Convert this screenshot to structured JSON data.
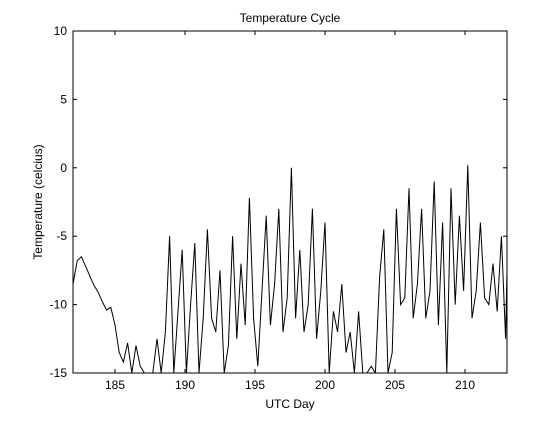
{
  "chart_data": {
    "type": "line",
    "title": "Temperature Cycle",
    "xlabel": "UTC Day",
    "ylabel": "Temperature (celcius)",
    "xlim": [
      182,
      213
    ],
    "ylim": [
      -15,
      10
    ],
    "xticks": [
      185,
      190,
      195,
      200,
      205,
      210
    ],
    "yticks": [
      -15,
      -10,
      -5,
      0,
      5,
      10
    ],
    "xtick_labels": [
      "185",
      "190",
      "195",
      "200",
      "205",
      "210"
    ],
    "ytick_labels": [
      "-15",
      "-10",
      "-5",
      "0",
      "5",
      "10"
    ],
    "grid": false,
    "line_color": "#000000",
    "series": [
      {
        "x": [
          182.0,
          182.3,
          182.6,
          182.9,
          183.2,
          183.5,
          183.8,
          184.1,
          184.4,
          184.7,
          185.0,
          185.3,
          185.6,
          185.9,
          186.2,
          186.5,
          186.8,
          187.1,
          187.4,
          187.7,
          188.0,
          188.3,
          188.6,
          188.9,
          189.2,
          189.5,
          189.8,
          190.1,
          190.4,
          190.7,
          191.0,
          191.3,
          191.6,
          191.9,
          192.2,
          192.5,
          192.8,
          193.1,
          193.4,
          193.7,
          194.0,
          194.3,
          194.6,
          194.9,
          195.2,
          195.5,
          195.8,
          196.1,
          196.4,
          196.7,
          197.0,
          197.3,
          197.6,
          197.9,
          198.2,
          198.5,
          198.8,
          199.1,
          199.4,
          199.7,
          200.0,
          200.3,
          200.6,
          200.9,
          201.2,
          201.5,
          201.8,
          202.1,
          202.4,
          202.7,
          203.0,
          203.3,
          203.6,
          203.9,
          204.2,
          204.5,
          204.8,
          205.1,
          205.4,
          205.7,
          206.0,
          206.3,
          206.6,
          206.9,
          207.2,
          207.5,
          207.8,
          208.1,
          208.4,
          208.7,
          209.0,
          209.3,
          209.6,
          209.9,
          210.2,
          210.5,
          210.8,
          211.1,
          211.4,
          211.7,
          212.0,
          212.3,
          212.6,
          212.9,
          213.0
        ],
        "y": [
          -8.5,
          -6.8,
          -6.5,
          -7.2,
          -7.9,
          -8.6,
          -9.1,
          -9.8,
          -10.4,
          -10.2,
          -11.5,
          -13.5,
          -14.2,
          -12.8,
          -15.0,
          -13.0,
          -14.5,
          -15.0,
          -15.0,
          -15.0,
          -12.5,
          -15.0,
          -12.0,
          -5.0,
          -15.0,
          -10.5,
          -6.0,
          -15.0,
          -10.0,
          -5.5,
          -15.0,
          -11.0,
          -4.5,
          -11.0,
          -12.0,
          -7.5,
          -15.0,
          -13.0,
          -5.0,
          -12.5,
          -7.0,
          -11.5,
          -2.2,
          -11.0,
          -14.5,
          -9.0,
          -3.5,
          -11.5,
          -8.5,
          -3.0,
          -12.0,
          -9.5,
          0.0,
          -11.0,
          -6.0,
          -12.0,
          -10.0,
          -3.0,
          -12.5,
          -9.0,
          -4.0,
          -15.0,
          -10.5,
          -12.0,
          -8.5,
          -13.5,
          -12.0,
          -15.0,
          -10.5,
          -15.0,
          -15.0,
          -14.5,
          -15.0,
          -8.0,
          -4.5,
          -15.0,
          -13.5,
          -3.0,
          -10.0,
          -9.5,
          -1.5,
          -11.0,
          -8.5,
          -3.0,
          -11.0,
          -9.0,
          -1.0,
          -11.5,
          -4.0,
          -15.0,
          -1.5,
          -10.0,
          -3.5,
          -9.0,
          0.2,
          -11.0,
          -9.0,
          -4.0,
          -9.5,
          -10.0,
          -7.0,
          -10.5,
          -5.0,
          -12.5,
          -7.5
        ]
      }
    ]
  }
}
